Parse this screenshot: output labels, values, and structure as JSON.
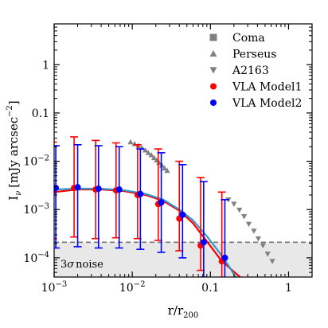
{
  "chart_data": {
    "type": "scatter",
    "xlabel": "r/r₂₀₀",
    "xlabel_main": "r/r",
    "xlabel_sub": "200",
    "ylabel": "Iν [mJy arcsec⁻²]",
    "ylabel_main": "I",
    "ylabel_sub": "ν",
    "ylabel_units": "[mJy arcsec",
    "ylabel_exp": "−2",
    "ylabel_close": "]",
    "xscale": "log",
    "yscale": "log",
    "xlim": [
      0.001,
      2
    ],
    "ylim": [
      4e-05,
      7
    ],
    "x_ticks": [
      {
        "value": 0.001,
        "label_base": "10",
        "label_exp": "−3"
      },
      {
        "value": 0.01,
        "label_base": "10",
        "label_exp": "−2"
      },
      {
        "value": 0.1,
        "label_base": "0.1",
        "label_exp": ""
      },
      {
        "value": 1,
        "label_base": "1",
        "label_exp": ""
      }
    ],
    "y_ticks": [
      {
        "value": 0.0001,
        "label_base": "10",
        "label_exp": "−4"
      },
      {
        "value": 0.001,
        "label_base": "10",
        "label_exp": "−3"
      },
      {
        "value": 0.01,
        "label_base": "10",
        "label_exp": "−2"
      },
      {
        "value": 0.1,
        "label_base": "0.1",
        "label_exp": ""
      },
      {
        "value": 1,
        "label_base": "1",
        "label_exp": ""
      }
    ],
    "noise_level": 0.00021,
    "noise_label_prefix": "3",
    "noise_label_sigma": "σ",
    "noise_label_suffix": "noise",
    "legend_position": "top-right",
    "legend": [
      {
        "name": "Coma",
        "marker": "square",
        "color": "#808080"
      },
      {
        "name": "Perseus",
        "marker": "triangle-up",
        "color": "#808080"
      },
      {
        "name": "A2163",
        "marker": "triangle-down",
        "color": "#808080"
      },
      {
        "name": "VLA Model1",
        "marker": "circle",
        "color": "#ff0000"
      },
      {
        "name": "VLA Model2",
        "marker": "circle",
        "color": "#0000ff"
      }
    ],
    "series": [
      {
        "name": "Perseus",
        "marker": "triangle-up",
        "color": "#808080",
        "x": [
          0.0095,
          0.0107,
          0.012,
          0.0133,
          0.0147,
          0.016,
          0.0175,
          0.019,
          0.0205,
          0.022,
          0.024,
          0.0258,
          0.028
        ],
        "y": [
          0.025,
          0.023,
          0.021,
          0.019,
          0.017,
          0.015,
          0.0135,
          0.0118,
          0.0105,
          0.0093,
          0.0082,
          0.0072,
          0.0064
        ]
      },
      {
        "name": "A2163",
        "marker": "triangle-down",
        "color": "#808080",
        "x": [
          0.17,
          0.2,
          0.235,
          0.27,
          0.31,
          0.36,
          0.41,
          0.47,
          0.54,
          0.62
        ],
        "y": [
          0.0016,
          0.0013,
          0.00098,
          0.00072,
          0.0005,
          0.00036,
          0.00025,
          0.00018,
          0.00012,
          8.5e-05
        ]
      },
      {
        "name": "VLA Model1",
        "marker": "circle",
        "color": "#ff0000",
        "x": [
          0.00097,
          0.0018,
          0.0034,
          0.0062,
          0.0117,
          0.0215,
          0.04,
          0.075,
          0.14
        ],
        "y": [
          0.0024,
          0.0028,
          0.0026,
          0.0025,
          0.002,
          0.0013,
          0.00065,
          0.00018,
          8.5e-05
        ],
        "err_low": [
          0.00025,
          0.00027,
          0.00025,
          0.00026,
          0.00025,
          0.00023,
          0.00014,
          5.5e-05,
          3e-05
        ],
        "err_high": [
          0.025,
          0.032,
          0.027,
          0.024,
          0.022,
          0.018,
          0.01,
          0.0046,
          0.0023
        ]
      },
      {
        "name": "VLA Model2",
        "marker": "circle",
        "color": "#0000ff",
        "x": [
          0.00105,
          0.002,
          0.0037,
          0.0068,
          0.0127,
          0.0235,
          0.044,
          0.082,
          0.153
        ],
        "y": [
          0.0028,
          0.0029,
          0.0027,
          0.0026,
          0.0021,
          0.0014,
          0.00078,
          0.00021,
          0.0001
        ],
        "err_low": [
          0.00016,
          0.00017,
          0.00016,
          0.00016,
          0.00015,
          0.00013,
          0.0001,
          4e-05,
          2e-05
        ],
        "err_high": [
          0.021,
          0.022,
          0.021,
          0.02,
          0.018,
          0.015,
          0.0085,
          0.0038,
          0.0016
        ]
      }
    ],
    "model_curves": [
      {
        "name": "VLA Model1",
        "color": "#ff0000",
        "x": [
          0.001,
          0.002,
          0.004,
          0.008,
          0.015,
          0.025,
          0.04,
          0.06,
          0.09,
          0.13,
          0.17,
          0.21,
          0.24
        ],
        "y": [
          0.0023,
          0.0026,
          0.0026,
          0.0024,
          0.002,
          0.0015,
          0.00095,
          0.00052,
          0.00022,
          0.0001,
          6.5e-05,
          4.8e-05,
          4e-05
        ]
      },
      {
        "name": "VLA Model2",
        "color": "#3399cc",
        "x": [
          0.001,
          0.002,
          0.004,
          0.008,
          0.015,
          0.025,
          0.04,
          0.06,
          0.09,
          0.13,
          0.17,
          0.21
        ],
        "y": [
          0.0026,
          0.0027,
          0.0027,
          0.0025,
          0.0021,
          0.0016,
          0.001,
          0.0006,
          0.00028,
          0.00013,
          7e-05,
          4e-05
        ]
      }
    ]
  }
}
